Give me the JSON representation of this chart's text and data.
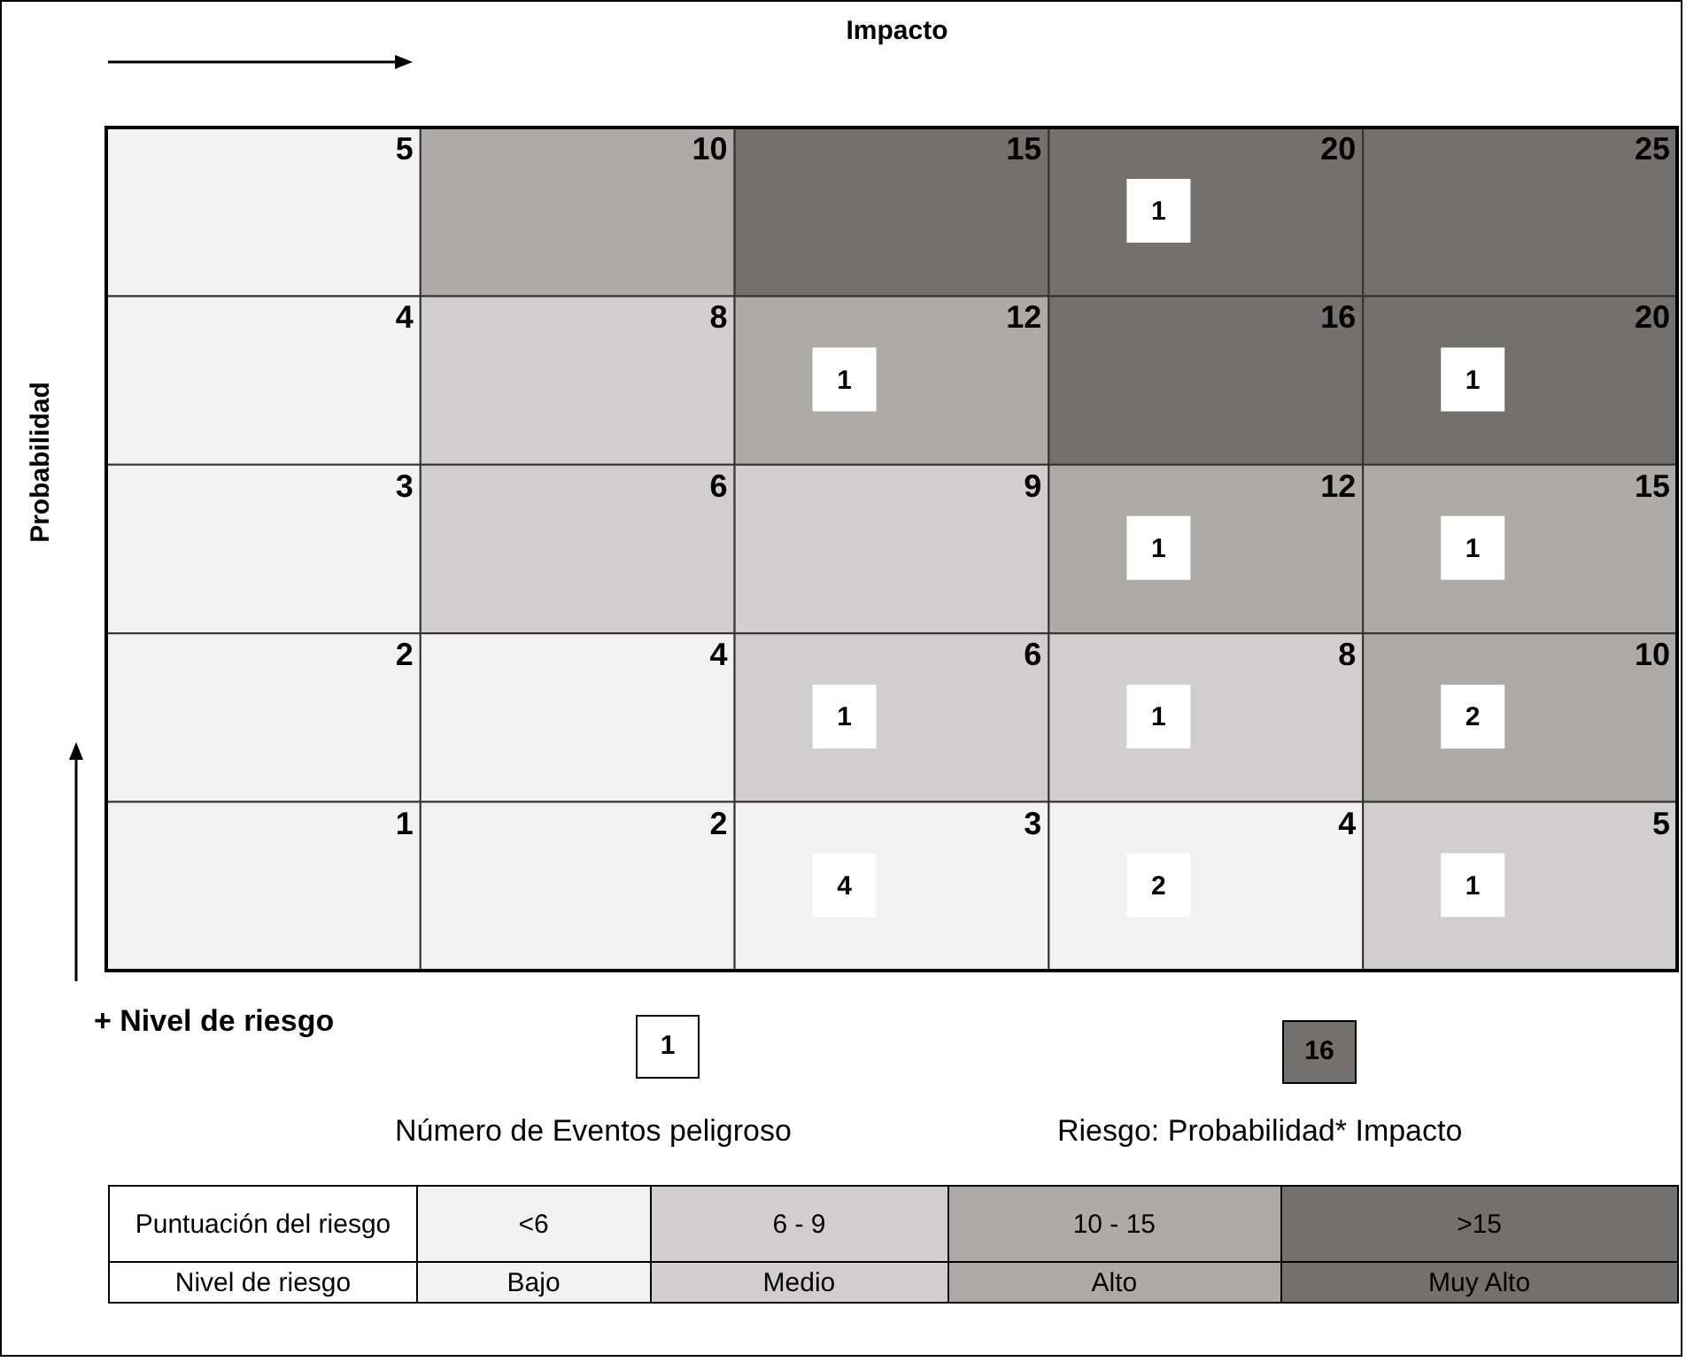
{
  "chart_data": [
    {
      "type": "heatmap",
      "title": "Impacto",
      "ylabel": "Probabilidad",
      "categories": [
        null,
        null,
        null,
        null,
        null
      ],
      "y_categories": [
        null,
        null,
        null,
        null,
        null
      ],
      "cells": [
        [
          5,
          10,
          15,
          20,
          25
        ],
        [
          4,
          8,
          12,
          16,
          20
        ],
        [
          3,
          6,
          9,
          12,
          15
        ],
        [
          2,
          4,
          6,
          8,
          10
        ],
        [
          1,
          2,
          3,
          4,
          5
        ]
      ],
      "colors": [
        [
          "#f2f2f2",
          "#aeaaaa",
          "#757070",
          "#757070",
          "#757070"
        ],
        [
          "#f2f2f2",
          "#d0cecf",
          "#aeaaaa",
          "#757070",
          "#757070"
        ],
        [
          "#f2f2f2",
          "#d0cecf",
          "#d0cecf",
          "#aeaaaa",
          "#aeaaaa"
        ],
        [
          "#f2f2f2",
          "#f2f2f2",
          "#d0cecf",
          "#d0cecf",
          "#aeaaaa"
        ],
        [
          "#f2f2f2",
          "#f2f2f2",
          "#f2f2f2",
          "#f2f2f2",
          "#d0cecf"
        ]
      ],
      "data_labels": true,
      "annotations": [
        "+ Nivel de riesgo",
        "1",
        "Número de Eventos peligroso",
        "16",
        "Riesgo: Probabilidad* Impacto"
      ]
    },
    {
      "type": "other",
      "cell_labels": [
        [
          null,
          null,
          null,
          "1",
          null
        ],
        [
          null,
          null,
          "1",
          null,
          "1"
        ],
        [
          null,
          null,
          null,
          "1",
          "1"
        ],
        [
          null,
          null,
          "1",
          "1",
          "2"
        ],
        [
          null,
          null,
          "4",
          "2",
          "1"
        ]
      ],
      "color": "#ffffff"
    },
    {
      "type": "other",
      "y_categories": [
        "Puntuación del riesgo",
        "Nivel de riesgo"
      ],
      "cell_labels": [
        [
          "<6",
          "6 - 9",
          "10 - 15",
          ">15"
        ],
        [
          "Bajo",
          "Medio",
          "Alto",
          "Muy Alto"
        ]
      ],
      "colors": [
        "#f2f2f2",
        "#d0cecf",
        "#aeaaaa",
        "#757070"
      ]
    }
  ]
}
